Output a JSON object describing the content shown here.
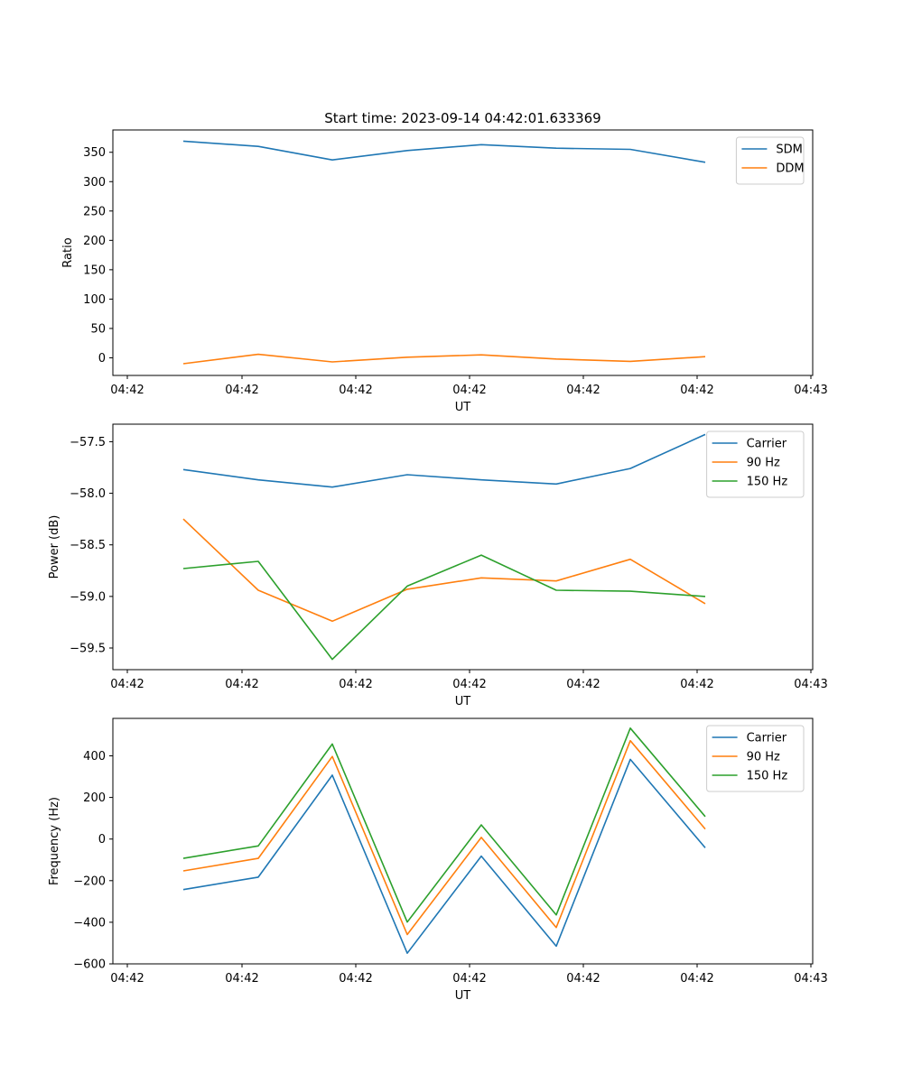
{
  "title": "Start time: 2023-09-14 04:42:01.633369",
  "chart_data": [
    {
      "type": "line",
      "title": "Start time: 2023-09-14 04:42:01.633369",
      "xlabel": "UT",
      "ylabel": "Ratio",
      "x_ticklabels": [
        "04:42",
        "04:42",
        "04:42",
        "04:42",
        "04:42",
        "04:42",
        "04:43"
      ],
      "y_ticks": [
        0,
        50,
        100,
        150,
        200,
        250,
        300,
        350
      ],
      "y_ticklabels": [
        "0",
        "50",
        "100",
        "150",
        "200",
        "250",
        "300",
        "350"
      ],
      "ylim": [
        -30,
        388
      ],
      "legend_position": "top-right",
      "series": [
        {
          "name": "SDM",
          "color": "#1f77b4",
          "values": [
            369,
            360,
            337,
            353,
            363,
            357,
            355,
            333
          ]
        },
        {
          "name": "DDM",
          "color": "#ff7f0e",
          "values": [
            -10,
            6,
            -7,
            1,
            5,
            -2,
            -6,
            2
          ]
        }
      ]
    },
    {
      "type": "line",
      "title": "",
      "xlabel": "UT",
      "ylabel": "Power (dB)",
      "x_ticklabels": [
        "04:42",
        "04:42",
        "04:42",
        "04:42",
        "04:42",
        "04:42",
        "04:43"
      ],
      "y_ticks": [
        -59.5,
        -59.0,
        -58.5,
        -58.0,
        -57.5
      ],
      "y_ticklabels": [
        "−59.5",
        "−59.0",
        "−58.5",
        "−58.0",
        "−57.5"
      ],
      "ylim": [
        -59.71,
        -57.33
      ],
      "legend_position": "top-right",
      "series": [
        {
          "name": "Carrier",
          "color": "#1f77b4",
          "values": [
            -57.77,
            -57.87,
            -57.94,
            -57.82,
            -57.87,
            -57.91,
            -57.76,
            -57.43
          ]
        },
        {
          "name": "90 Hz",
          "color": "#ff7f0e",
          "values": [
            -58.25,
            -58.94,
            -59.24,
            -58.93,
            -58.82,
            -58.85,
            -58.64,
            -59.07
          ]
        },
        {
          "name": "150 Hz",
          "color": "#2ca02c",
          "values": [
            -58.73,
            -58.66,
            -59.61,
            -58.9,
            -58.6,
            -58.94,
            -58.95,
            -59.0
          ]
        }
      ]
    },
    {
      "type": "line",
      "title": "",
      "xlabel": "UT",
      "ylabel": "Frequency (Hz)",
      "x_ticklabels": [
        "04:42",
        "04:42",
        "04:42",
        "04:42",
        "04:42",
        "04:42",
        "04:43"
      ],
      "y_ticks": [
        -600,
        -400,
        -200,
        0,
        200,
        400
      ],
      "y_ticklabels": [
        "−600",
        "−400",
        "−200",
        "0",
        "200",
        "400"
      ],
      "ylim": [
        -600,
        580
      ],
      "legend_position": "top-right",
      "series": [
        {
          "name": "Carrier",
          "color": "#1f77b4",
          "values": [
            -243,
            -183,
            307,
            -549,
            -82,
            -515,
            383,
            -42
          ]
        },
        {
          "name": "90 Hz",
          "color": "#ff7f0e",
          "values": [
            -153,
            -93,
            397,
            -459,
            8,
            -425,
            473,
            48
          ]
        },
        {
          "name": "150 Hz",
          "color": "#2ca02c",
          "values": [
            -93,
            -33,
            457,
            -399,
            68,
            -365,
            533,
            108
          ]
        }
      ]
    }
  ]
}
